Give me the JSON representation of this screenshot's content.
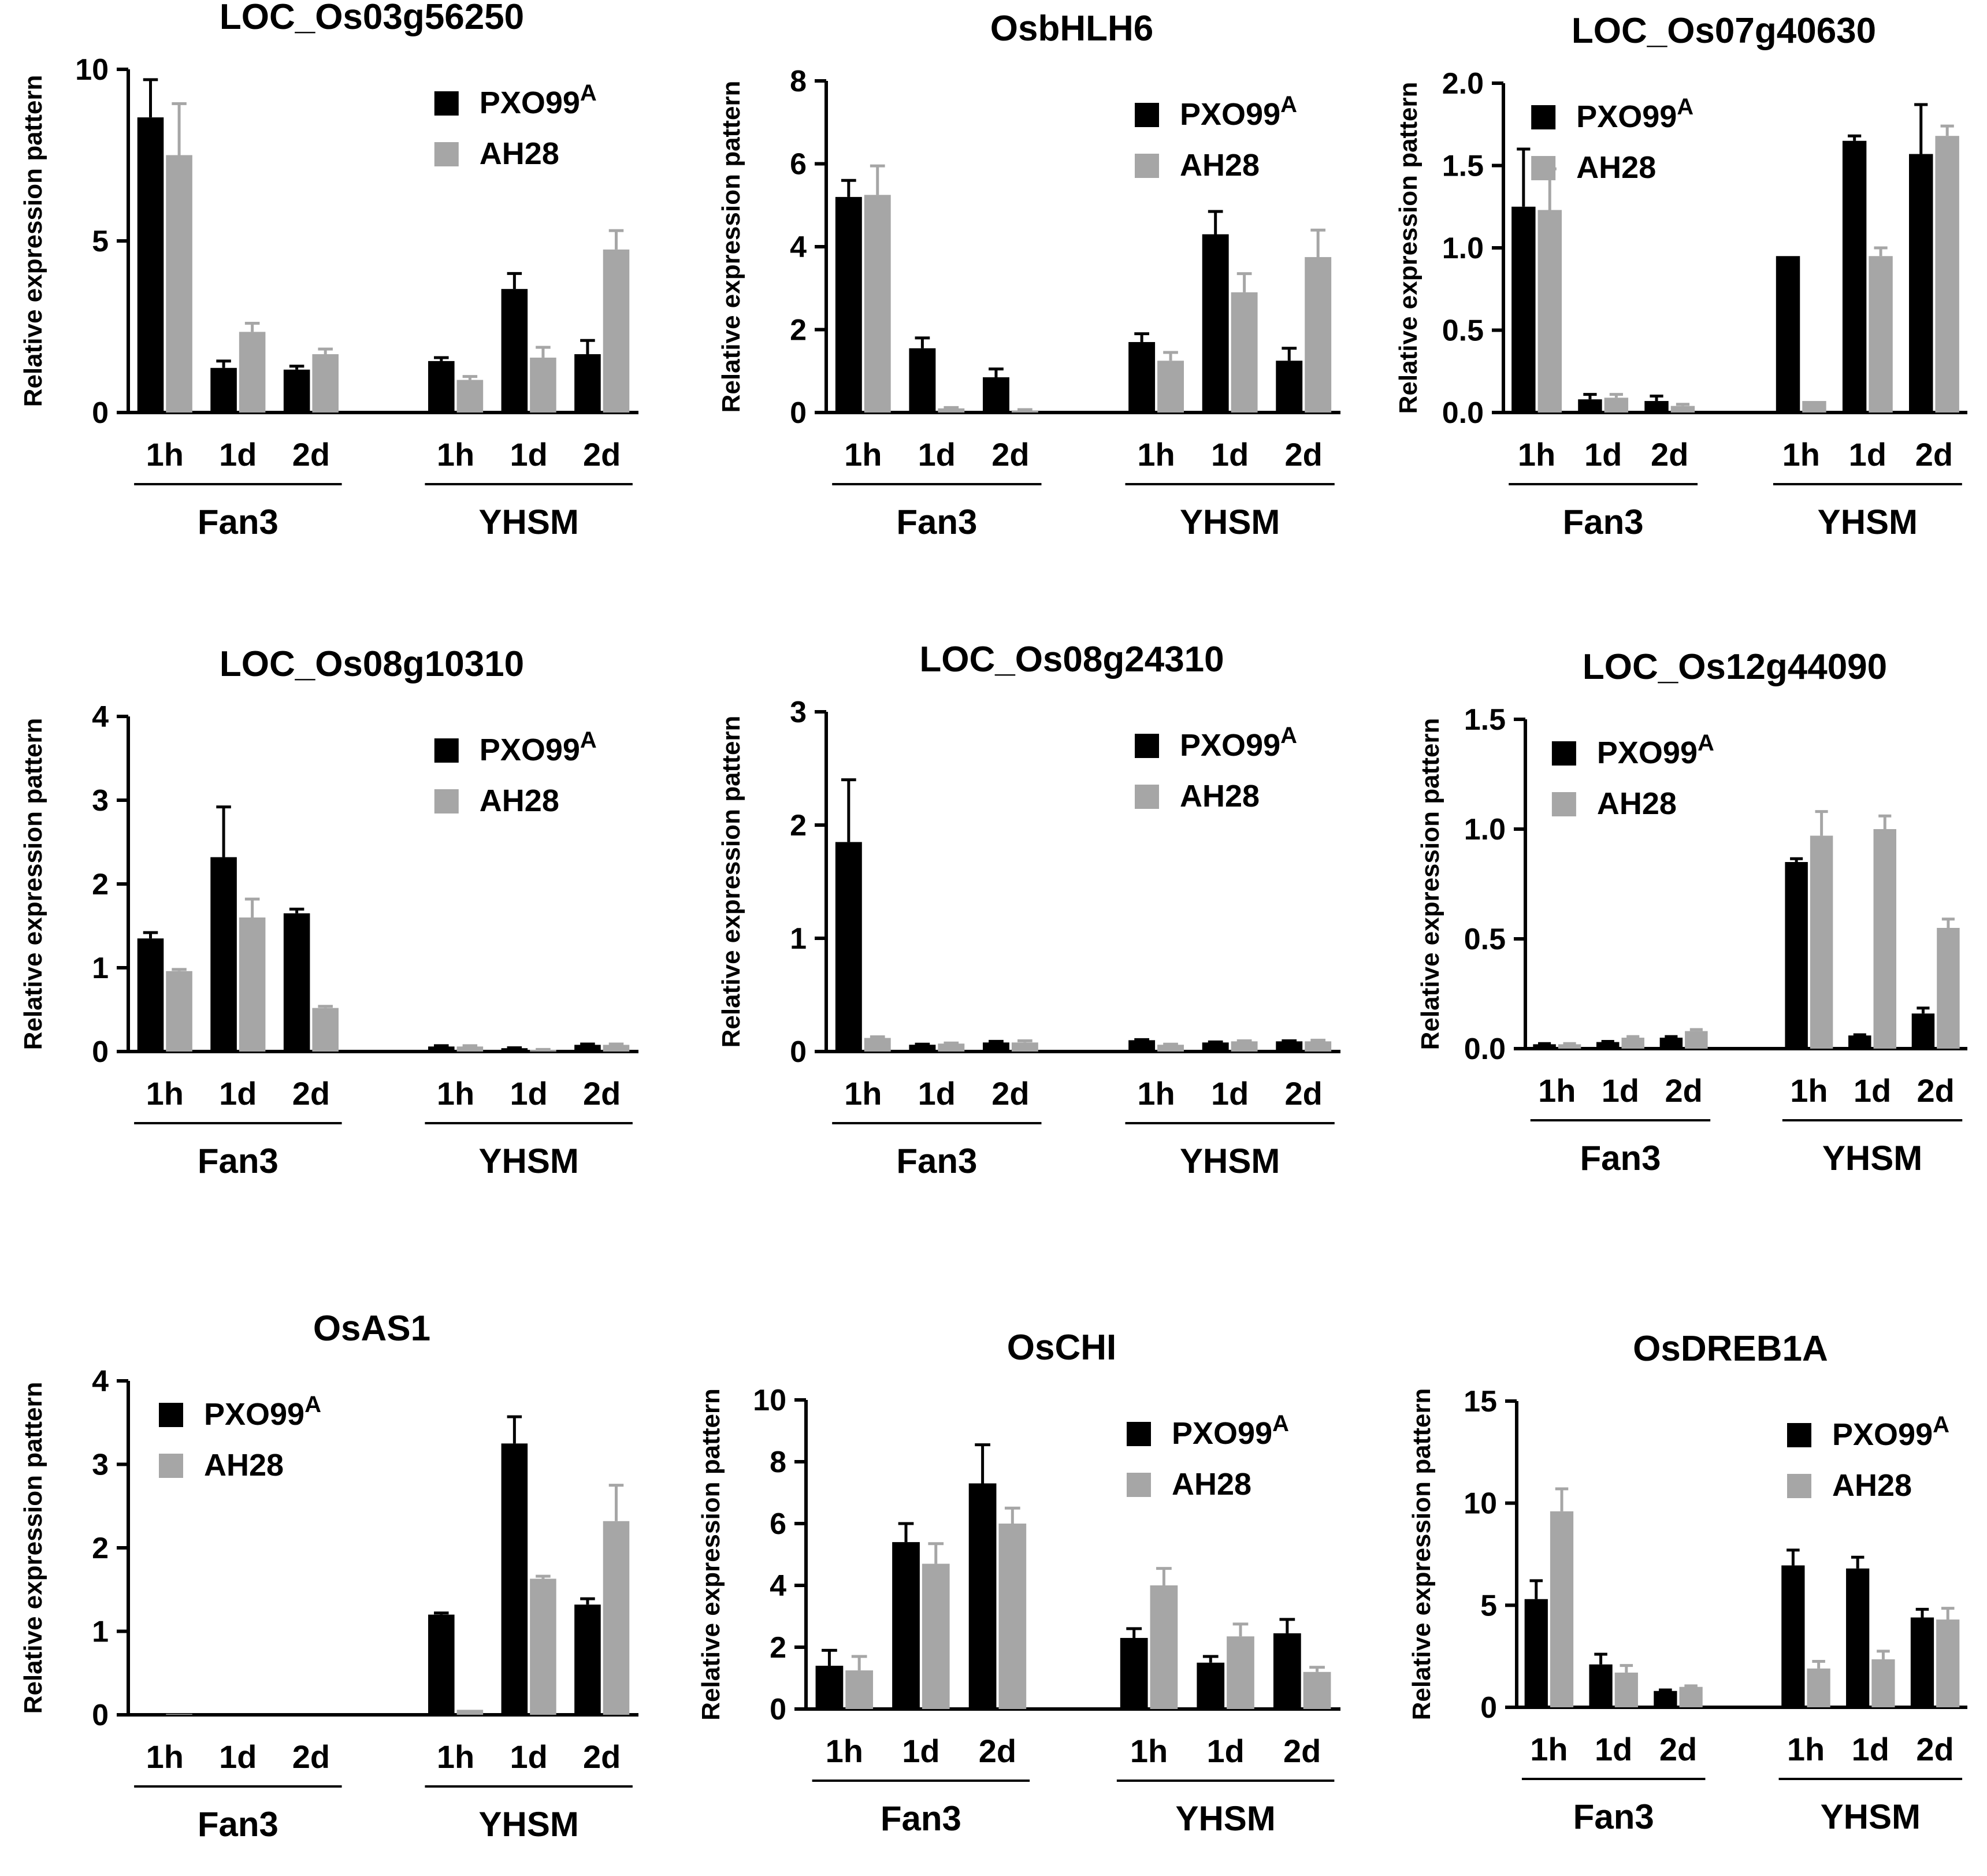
{
  "figure": {
    "series_colors": {
      "PXO99A": "#000000",
      "AH28": "#a6a6a6"
    },
    "legend_labels": {
      "black": "PXO99",
      "black_sup": "A",
      "gray": "AH28"
    },
    "axis_label": "Relative expression pattern",
    "time_labels": [
      "1h",
      "1d",
      "2d"
    ],
    "group_labels": [
      "Fan3",
      "YHSM"
    ]
  },
  "chart_data": [
    {
      "type": "bar",
      "title": "LOC_Os03g56250",
      "ylabel": "Relative expression pattern",
      "categories": [
        "Fan3 1h",
        "Fan3 1d",
        "Fan3 2d",
        "YHSM 1h",
        "YHSM 1d",
        "YHSM 2d"
      ],
      "ylim": [
        0,
        10
      ],
      "yticks": [
        0,
        5,
        10
      ],
      "ytick_labels": [
        "0",
        "5",
        "10"
      ],
      "legend_position": "top-right",
      "series": [
        {
          "name": "PXO99A",
          "values": [
            8.6,
            1.3,
            1.25,
            1.5,
            3.6,
            1.7
          ],
          "errors": [
            1.1,
            0.2,
            0.1,
            0.1,
            0.45,
            0.4
          ]
        },
        {
          "name": "AH28",
          "values": [
            7.5,
            2.35,
            1.7,
            0.95,
            1.6,
            4.75
          ],
          "errors": [
            1.5,
            0.25,
            0.15,
            0.1,
            0.3,
            0.55
          ]
        }
      ]
    },
    {
      "type": "bar",
      "title": "OsbHLH6",
      "ylabel": "Relative expression pattern",
      "categories": [
        "Fan3 1h",
        "Fan3 1d",
        "Fan3 2d",
        "YHSM 1h",
        "YHSM 1d",
        "YHSM 2d"
      ],
      "ylim": [
        0,
        8
      ],
      "yticks": [
        0,
        2,
        4,
        6,
        8
      ],
      "ytick_labels": [
        "0",
        "2",
        "4",
        "6",
        "8"
      ],
      "legend_position": "top-right",
      "series": [
        {
          "name": "PXO99A",
          "values": [
            5.2,
            1.55,
            0.85,
            1.7,
            4.3,
            1.25
          ],
          "errors": [
            0.4,
            0.25,
            0.2,
            0.2,
            0.55,
            0.3
          ]
        },
        {
          "name": "AH28",
          "values": [
            5.25,
            0.1,
            0.05,
            1.25,
            2.9,
            3.75
          ],
          "errors": [
            0.7,
            0.02,
            0.02,
            0.2,
            0.45,
            0.65
          ]
        }
      ]
    },
    {
      "type": "bar",
      "title": "LOC_Os07g40630",
      "ylabel": "Relative expression pattern",
      "categories": [
        "Fan3 1h",
        "Fan3 1d",
        "Fan3 2d",
        "YHSM 1h",
        "YHSM 1d",
        "YHSM 2d"
      ],
      "ylim": [
        0,
        2
      ],
      "yticks": [
        0,
        0.5,
        1,
        1.5,
        2
      ],
      "ytick_labels": [
        "0.0",
        "0.5",
        "1.0",
        "1.5",
        "2.0"
      ],
      "legend_position": "top-left",
      "series": [
        {
          "name": "PXO99A",
          "values": [
            1.25,
            0.08,
            0.07,
            0.95,
            1.65,
            1.57
          ],
          "errors": [
            0.35,
            0.03,
            0.03,
            0.0,
            0.03,
            0.3
          ]
        },
        {
          "name": "AH28",
          "values": [
            1.23,
            0.09,
            0.04,
            0.07,
            0.95,
            1.68
          ],
          "errors": [
            0.25,
            0.02,
            0.01,
            0.0,
            0.05,
            0.06
          ]
        }
      ]
    },
    {
      "type": "bar",
      "title": "LOC_Os08g10310",
      "ylabel": "Relative expression pattern",
      "categories": [
        "Fan3 1h",
        "Fan3 1d",
        "Fan3 2d",
        "YHSM 1h",
        "YHSM 1d",
        "YHSM 2d"
      ],
      "ylim": [
        0,
        4
      ],
      "yticks": [
        0,
        1,
        2,
        3,
        4
      ],
      "ytick_labels": [
        "0",
        "1",
        "2",
        "3",
        "4"
      ],
      "legend_position": "top-right",
      "series": [
        {
          "name": "PXO99A",
          "values": [
            1.35,
            2.32,
            1.65,
            0.06,
            0.04,
            0.08
          ],
          "errors": [
            0.07,
            0.6,
            0.05,
            0.01,
            0.005,
            0.01
          ]
        },
        {
          "name": "AH28",
          "values": [
            0.96,
            1.6,
            0.52,
            0.06,
            0.02,
            0.08
          ],
          "errors": [
            0.02,
            0.22,
            0.02,
            0.01,
            0.005,
            0.01
          ]
        }
      ]
    },
    {
      "type": "bar",
      "title": "LOC_Os08g24310",
      "ylabel": "Relative expression pattern",
      "categories": [
        "Fan3 1h",
        "Fan3 1d",
        "Fan3 2d",
        "YHSM 1h",
        "YHSM 1d",
        "YHSM 2d"
      ],
      "ylim": [
        0,
        3
      ],
      "yticks": [
        0,
        1,
        2,
        3
      ],
      "ytick_labels": [
        "0",
        "1",
        "2",
        "3"
      ],
      "legend_position": "top-right",
      "series": [
        {
          "name": "PXO99A",
          "values": [
            1.85,
            0.06,
            0.08,
            0.1,
            0.08,
            0.09
          ],
          "errors": [
            0.55,
            0.005,
            0.01,
            0.005,
            0.005,
            0.005
          ]
        },
        {
          "name": "AH28",
          "values": [
            0.12,
            0.07,
            0.08,
            0.06,
            0.09,
            0.09
          ],
          "errors": [
            0.01,
            0.005,
            0.015,
            0.005,
            0.005,
            0.01
          ]
        }
      ]
    },
    {
      "type": "bar",
      "title": "LOC_Os12g44090",
      "ylabel": "Relative expression pattern",
      "categories": [
        "Fan3 1h",
        "Fan3 1d",
        "Fan3 2d",
        "YHSM 1h",
        "YHSM 1d",
        "YHSM 2d"
      ],
      "ylim": [
        0,
        1.5
      ],
      "yticks": [
        0,
        0.5,
        1,
        1.5
      ],
      "ytick_labels": [
        "0.0",
        "0.5",
        "1.0",
        "1.5"
      ],
      "legend_position": "top-left",
      "series": [
        {
          "name": "PXO99A",
          "values": [
            0.02,
            0.03,
            0.05,
            0.85,
            0.06,
            0.16
          ],
          "errors": [
            0.003,
            0.003,
            0.005,
            0.015,
            0.003,
            0.025
          ]
        },
        {
          "name": "AH28",
          "values": [
            0.02,
            0.05,
            0.08,
            0.97,
            1.0,
            0.55
          ],
          "errors": [
            0.003,
            0.005,
            0.007,
            0.11,
            0.06,
            0.04
          ]
        }
      ]
    },
    {
      "type": "bar",
      "title": "OsAS1",
      "ylabel": "Relative expression pattern",
      "categories": [
        "Fan3 1h",
        "Fan3 1d",
        "Fan3 2d",
        "YHSM 1h",
        "YHSM 1d",
        "YHSM 2d"
      ],
      "ylim": [
        0,
        4
      ],
      "yticks": [
        0,
        1,
        2,
        3,
        4
      ],
      "ytick_labels": [
        "0",
        "1",
        "2",
        "3",
        "4"
      ],
      "legend_position": "top-left",
      "series": [
        {
          "name": "PXO99A",
          "values": [
            0.01,
            0.0,
            0.0,
            1.2,
            3.25,
            1.32
          ],
          "errors": [
            0.0,
            0.0,
            0.0,
            0.02,
            0.32,
            0.07
          ]
        },
        {
          "name": "AH28",
          "values": [
            0.01,
            0.0,
            0.0,
            0.06,
            1.63,
            2.32
          ],
          "errors": [
            0.0,
            0.0,
            0.0,
            0.0,
            0.03,
            0.43
          ]
        }
      ]
    },
    {
      "type": "bar",
      "title": "OsCHI",
      "ylabel": "Relative expression pattern",
      "categories": [
        "Fan3 1h",
        "Fan3 1d",
        "Fan3 2d",
        "YHSM 1h",
        "YHSM 1d",
        "YHSM 2d"
      ],
      "ylim": [
        0,
        10
      ],
      "yticks": [
        0,
        2,
        4,
        6,
        8,
        10
      ],
      "ytick_labels": [
        "0",
        "2",
        "4",
        "6",
        "8",
        "10"
      ],
      "legend_position": "top-right",
      "series": [
        {
          "name": "PXO99A",
          "values": [
            1.4,
            5.4,
            7.3,
            2.3,
            1.5,
            2.45
          ],
          "errors": [
            0.5,
            0.6,
            1.25,
            0.3,
            0.2,
            0.45
          ]
        },
        {
          "name": "AH28",
          "values": [
            1.25,
            4.7,
            6.0,
            4.0,
            2.35,
            1.2
          ],
          "errors": [
            0.45,
            0.65,
            0.5,
            0.55,
            0.4,
            0.15
          ]
        }
      ]
    },
    {
      "type": "bar",
      "title": "OsDREB1A",
      "ylabel": "Relative expression pattern",
      "categories": [
        "Fan3 1h",
        "Fan3 1d",
        "Fan3 2d",
        "YHSM 1h",
        "YHSM 1d",
        "YHSM 2d"
      ],
      "ylim": [
        0,
        15
      ],
      "yticks": [
        0,
        5,
        10,
        15
      ],
      "ytick_labels": [
        "0",
        "5",
        "10",
        "15"
      ],
      "legend_position": "top-right",
      "series": [
        {
          "name": "PXO99A",
          "values": [
            5.3,
            2.1,
            0.8,
            6.95,
            6.8,
            4.4
          ],
          "errors": [
            0.9,
            0.5,
            0.05,
            0.75,
            0.55,
            0.4
          ]
        },
        {
          "name": "AH28",
          "values": [
            9.6,
            1.7,
            1.0,
            1.9,
            2.35,
            4.3
          ],
          "errors": [
            1.1,
            0.35,
            0.05,
            0.35,
            0.4,
            0.55
          ]
        }
      ]
    }
  ]
}
